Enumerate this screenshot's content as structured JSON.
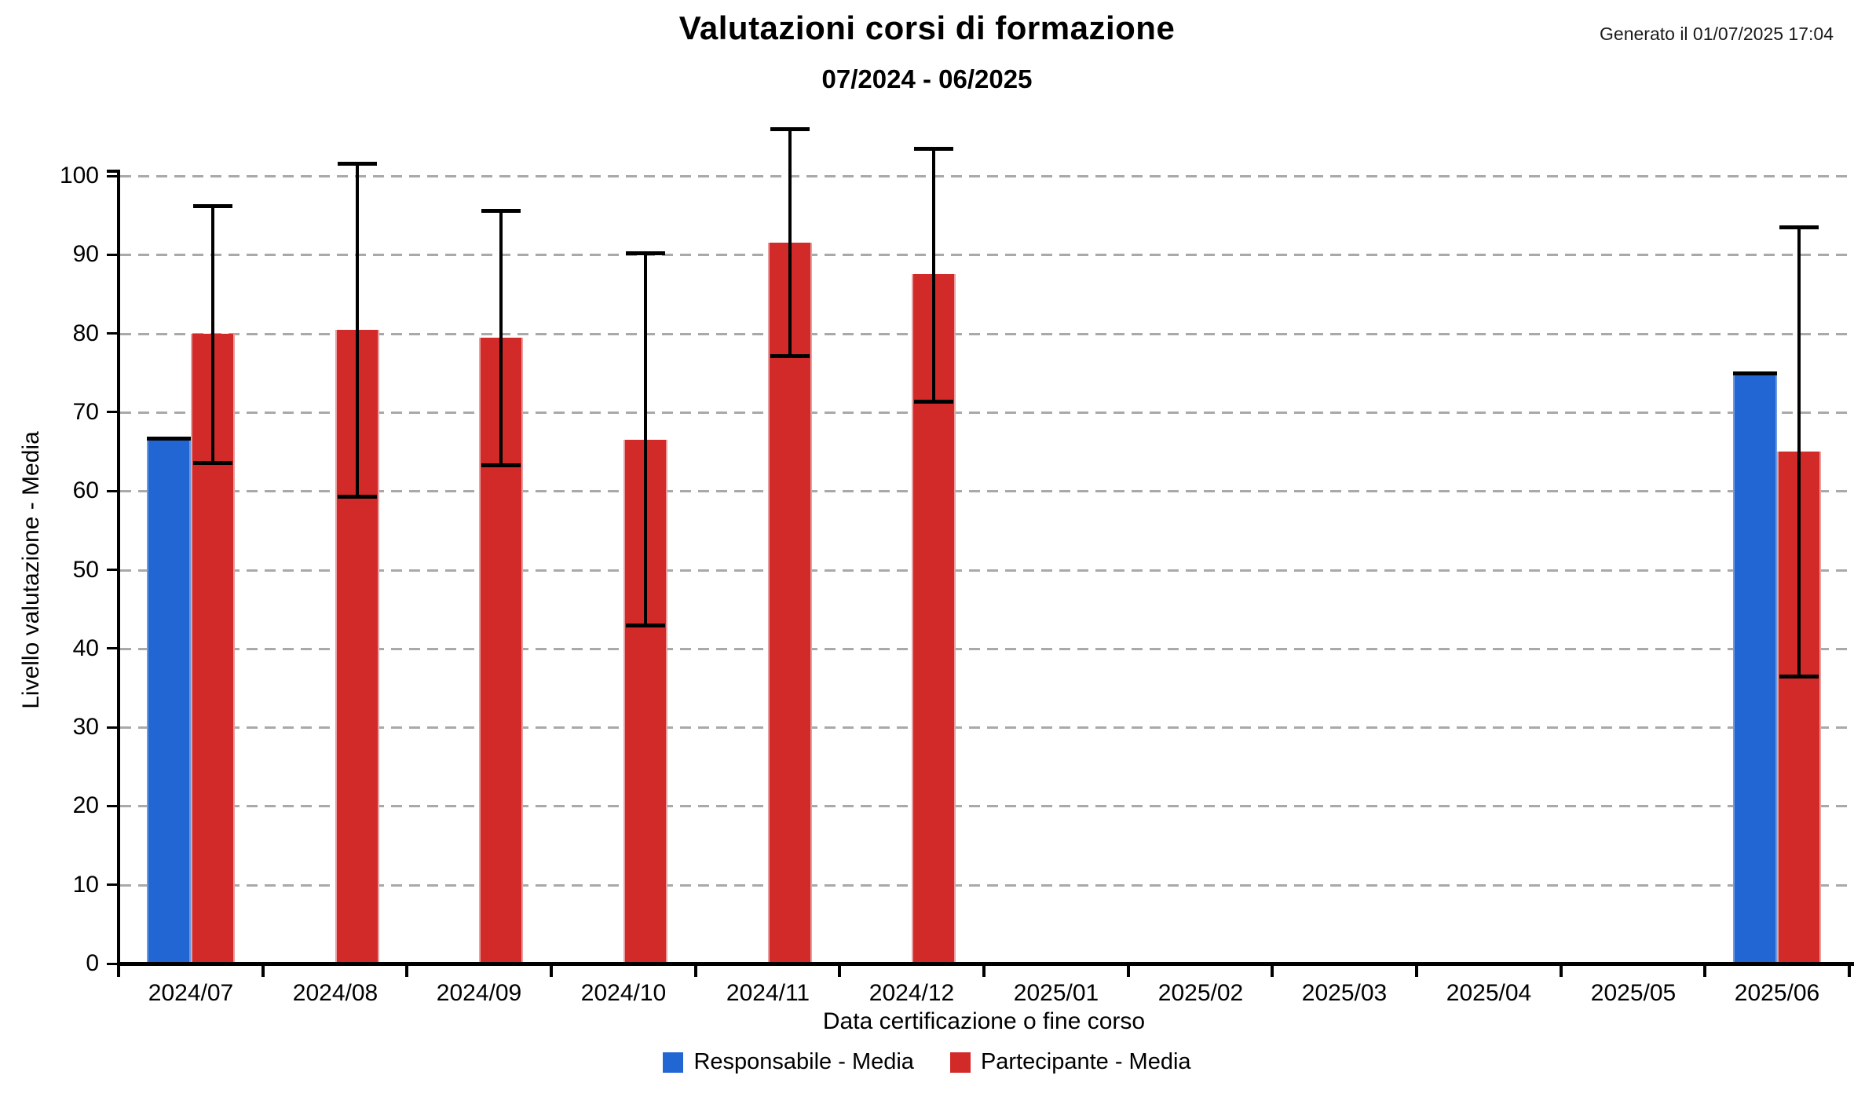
{
  "header": {
    "generated": "Generato il 01/07/2025 17:04"
  },
  "chart_data": {
    "type": "bar",
    "title": "Valutazioni corsi di formazione",
    "subtitle": "07/2024 - 06/2025",
    "xlabel": "Data certificazione o fine corso",
    "ylabel": "Livello valutazione - Media",
    "ylim": [
      0,
      100
    ],
    "ytick_step": 10,
    "grid": "horizontal-dashed",
    "gridline_color": "#a9a9a9",
    "axis_color": "#000000",
    "legend_position": "bottom",
    "categories": [
      "2024/07",
      "2024/08",
      "2024/09",
      "2024/10",
      "2024/11",
      "2024/12",
      "2025/01",
      "2025/02",
      "2025/03",
      "2025/04",
      "2025/05",
      "2025/06"
    ],
    "series": [
      {
        "name": "Responsabile - Media",
        "color": "#2166D2",
        "edge_color": "#6D9BE0",
        "values": [
          66.7,
          null,
          null,
          null,
          null,
          null,
          null,
          null,
          null,
          null,
          null,
          75
        ],
        "error_low": [
          66.7,
          null,
          null,
          null,
          null,
          null,
          null,
          null,
          null,
          null,
          null,
          75
        ],
        "error_high": [
          66.7,
          null,
          null,
          null,
          null,
          null,
          null,
          null,
          null,
          null,
          null,
          75
        ]
      },
      {
        "name": "Partecipante - Media",
        "color": "#D22929",
        "edge_color": "#E89F9F",
        "values": [
          80,
          80.5,
          79.5,
          66.5,
          91.5,
          87.5,
          null,
          null,
          null,
          null,
          null,
          65
        ],
        "error_low": [
          63.6,
          59.3,
          63.3,
          43,
          77.2,
          71.4,
          null,
          null,
          null,
          null,
          null,
          36.5
        ],
        "error_high": [
          96.2,
          101.6,
          95.6,
          90.2,
          106,
          103.5,
          null,
          null,
          null,
          null,
          null,
          93.5
        ]
      }
    ]
  }
}
